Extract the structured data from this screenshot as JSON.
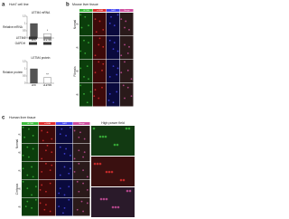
{
  "panel_a": {
    "label": "a",
    "title": "Huh7 cell line",
    "charts": [
      {
        "title": "LETM4 mRNA",
        "ylabel": "Relative mRNA",
        "categories": [
          "siNC",
          "siLETM4"
        ],
        "values": [
          1,
          0.3
        ],
        "ylim": [
          0,
          1.5
        ],
        "yticks": [
          0,
          0.5,
          1,
          1.5
        ],
        "significance": "*",
        "color": "#555555"
      },
      {
        "title": "LETM4 protein",
        "ylabel": "Relative protein",
        "categories": [
          "siNC",
          "siLETM4"
        ],
        "values": [
          1,
          0.4
        ],
        "ylim": [
          0,
          1.5
        ],
        "yticks": [
          0,
          0.5,
          1,
          1.5
        ],
        "significance": "**",
        "color": "#555555"
      }
    ],
    "blot_labels": [
      "LETM4",
      "GAPDH"
    ]
  },
  "panel_b": {
    "label": "b",
    "title": "Mouse liver tissue",
    "channels": [
      "LETM4",
      "α-SMA",
      "DAPI",
      "Merge"
    ],
    "groups": [
      {
        "name": "Normal",
        "rows": [
          "#1"
        ]
      },
      {
        "name": "Fibrosis",
        "rows": [
          "#1",
          "#2",
          "#3"
        ]
      }
    ]
  },
  "panel_c": {
    "label": "c",
    "title": "Human liver tissue",
    "channels": [
      "LETM4",
      "α-SMA",
      "DAPI",
      "Merge"
    ],
    "groups": [
      {
        "name": "Normal",
        "rows": [
          "#1",
          "#2"
        ]
      },
      {
        "name": "Cirrhosis",
        "rows": [
          "#1",
          "#2",
          "#3"
        ]
      }
    ],
    "zoom_title": "High power field"
  }
}
